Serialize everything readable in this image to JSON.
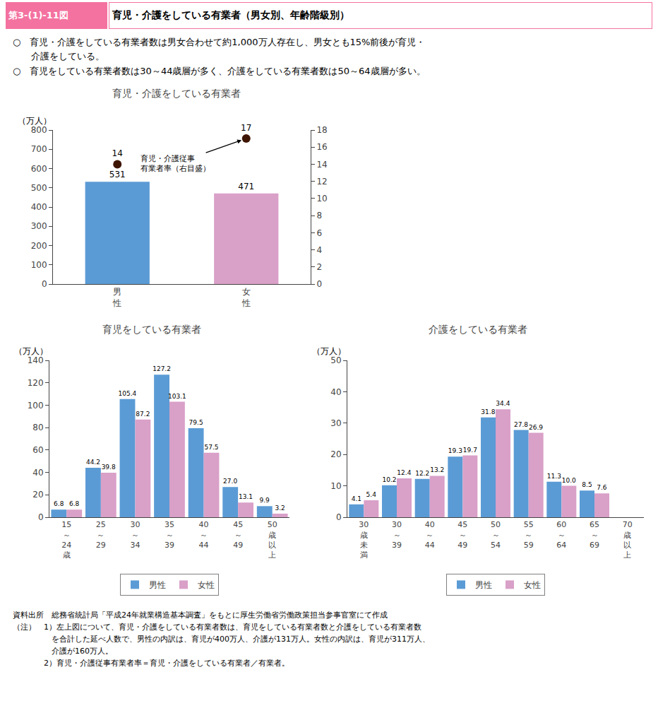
{
  "title": "育児・介護をしている有業者（男女別、年齢階級別）",
  "subtitle": [
    "○　育児・介護をしている有業者数は男女合わせて約1,000万人存在し、男女とも15%前後が育児・\n　　介護をしている。",
    "○　育児をしている有業者数は30～44歳層が多く、介護をしている有業者数は50～64歳層が多い。"
  ],
  "annotations": [
    "第3-(1)-11図",
    "資料出所　総務省統計局「平成24年就業構造基本調査」をもとに厚生労働省労働政策担当参事官室にて作成",
    "（注）　1）左上図について、育児・介護をしている有業者数は、育児をしている有業者数と介護をしている有業者数\n　　　　　を合計した延べ人数で、男性の内訳は、育児が400万人、介護が131万人。女性の内訳は、育児が311万人、\n　　　　　介護が160万人。",
    "　　　　2）育児・介護従事有業者率＝育児・介護をしている有業者／有業者。"
  ],
  "chart_data": [
    {
      "type": "bar",
      "title": "育児・介護をしている有業者",
      "ylabel": "（万人）",
      "categories": [
        "男\n性",
        "女\n性"
      ],
      "series": [
        {
          "type": "bar",
          "values": [
            531,
            471
          ],
          "colors": [
            "#5b9bd5",
            "#d9a0c8"
          ]
        },
        {
          "type": "scatter",
          "axis": "y2",
          "values": [
            14,
            17
          ],
          "color": "#3d1500",
          "marker": "circle"
        }
      ],
      "ylim": [
        0,
        800
      ],
      "yticks": [
        0,
        100,
        200,
        300,
        400,
        500,
        600,
        700,
        800
      ],
      "y2lim": [
        0,
        18
      ],
      "y2ticks": [
        0,
        2,
        4,
        6,
        8,
        10,
        12,
        14,
        16,
        18
      ],
      "annotations": [
        {
          "text": "育児・介護従事\n有業者率（右目盛）",
          "x": 1,
          "y": 17,
          "axis": "y2"
        }
      ],
      "data_labels": true,
      "grid": false
    },
    {
      "type": "bar",
      "title": "育児をしている有業者",
      "ylabel": "（万人）",
      "categories": [
        "15\n～\n24\n歳",
        "25\n～\n29",
        "30\n～\n34",
        "35\n～\n39",
        "40\n～\n44",
        "45\n～\n49",
        "50\n歳\n以\n上"
      ],
      "series": [
        {
          "name": "男性",
          "color": "#5b9bd5",
          "values": [
            6.8,
            44.2,
            105.4,
            127.2,
            79.5,
            27.0,
            9.9
          ],
          "value_labels": [
            "6.8",
            "44.2",
            "105.4",
            "127.2",
            "79.5",
            "27.0",
            "9.9"
          ]
        },
        {
          "name": "女性",
          "color": "#d9a0c8",
          "values": [
            6.8,
            39.8,
            87.2,
            103.1,
            57.5,
            13.1,
            3.2
          ],
          "value_labels": [
            "6.8",
            "39.8",
            "87.2",
            "103.1",
            "57.5",
            "13.1",
            "3.2"
          ]
        }
      ],
      "ylim": [
        0,
        140
      ],
      "yticks": [
        0,
        20,
        40,
        60,
        80,
        100,
        120,
        140
      ],
      "data_labels": true,
      "legend": "bottom",
      "grid": false
    },
    {
      "type": "bar",
      "title": "介護をしている有業者",
      "ylabel": "（万人）",
      "categories": [
        "30\n歳\n未\n満",
        "30\n～\n39",
        "40\n～\n44",
        "45\n～\n49",
        "50\n～\n54",
        "55\n～\n59",
        "60\n～\n64",
        "65\n～\n69",
        "70\n歳\n以\n上"
      ],
      "series": [
        {
          "name": "男性",
          "color": "#5b9bd5",
          "values": [
            4.1,
            10.2,
            12.2,
            19.3,
            31.8,
            27.8,
            11.3,
            8.5,
            0
          ],
          "value_labels": [
            "4.1",
            "10.2",
            "12.2",
            "19.3",
            "31.8",
            "27.8",
            "11.3",
            "8.5",
            null
          ]
        },
        {
          "name": "女性",
          "color": "#d9a0c8",
          "values": [
            5.4,
            12.4,
            13.2,
            19.7,
            34.4,
            26.9,
            10.0,
            7.6,
            0
          ],
          "value_labels": [
            "5.4",
            "12.4",
            "13.2",
            "19.7",
            "34.4",
            "26.9",
            "10.0",
            "7.6",
            null
          ]
        }
      ],
      "ylim": [
        0,
        50
      ],
      "yticks": [
        0,
        10,
        20,
        30,
        40,
        50
      ],
      "data_labels": true,
      "legend": "bottom",
      "grid": false
    }
  ]
}
